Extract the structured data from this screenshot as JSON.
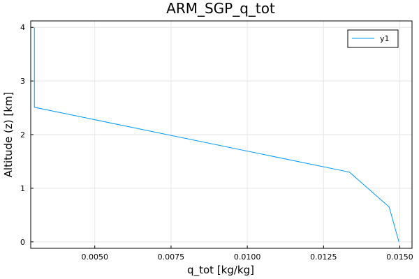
{
  "chart_data": {
    "type": "line",
    "title": "ARM_SGP_q_tot",
    "xlabel": "q_tot [kg/kg]",
    "ylabel": "Altitude (z) [km]",
    "xlim": [
      0.0029,
      0.0154
    ],
    "ylim": [
      -0.12,
      4.12
    ],
    "xticks": [
      0.005,
      0.0075,
      0.01,
      0.0125,
      0.015
    ],
    "xtick_labels": [
      "0.0050",
      "0.0075",
      "0.0100",
      "0.0125",
      "0.0150"
    ],
    "yticks": [
      0,
      1,
      2,
      3,
      4
    ],
    "ytick_labels": [
      "0",
      "1",
      "2",
      "3",
      "4"
    ],
    "grid": true,
    "legend_position": "top-right",
    "series": [
      {
        "name": "y1",
        "color": "#009AFA",
        "x": [
          0.01497,
          0.01465,
          0.01335,
          0.00302,
          0.00302
        ],
        "y": [
          0.0,
          0.65,
          1.3,
          2.51,
          4.0
        ]
      }
    ]
  }
}
